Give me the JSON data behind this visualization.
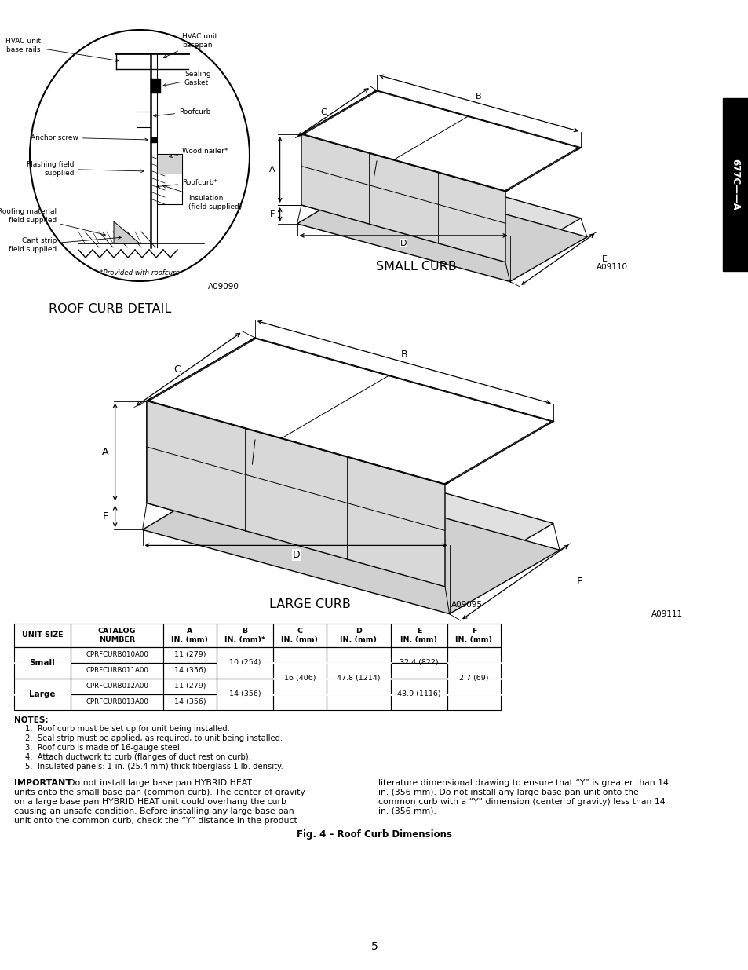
{
  "page_bg": "#ffffff",
  "page_width": 9.54,
  "page_height": 12.35,
  "dpi": 100,
  "roof_curb_title": "ROOF CURB DETAIL",
  "small_curb_title": "SMALL CURB",
  "large_curb_title": "LARGE CURB",
  "fig_caption": "Fig. 4 – Roof Curb Dimensions",
  "code_small": "A09110",
  "code_large": "A09095",
  "code_detail": "A09090",
  "code_table": "A09111",
  "page_number": "5",
  "notes_header": "NOTES:",
  "notes": [
    "1.  Roof curb must be set up for unit being installed.",
    "2.  Seal strip must be applied, as required, to unit being installed.",
    "3.  Roof curb is made of 16-gauge steel.",
    "4.  Attach ductwork to curb (flanges of duct rest on curb).",
    "5.  Insulated panels: 1-in. (25.4 mm) thick fiberglass 1 lb. density."
  ],
  "tab_label": "677C——A",
  "table_col_widths": [
    72,
    118,
    68,
    72,
    68,
    82,
    72,
    68
  ],
  "table_row_heights": [
    30,
    20,
    20,
    20,
    20
  ]
}
